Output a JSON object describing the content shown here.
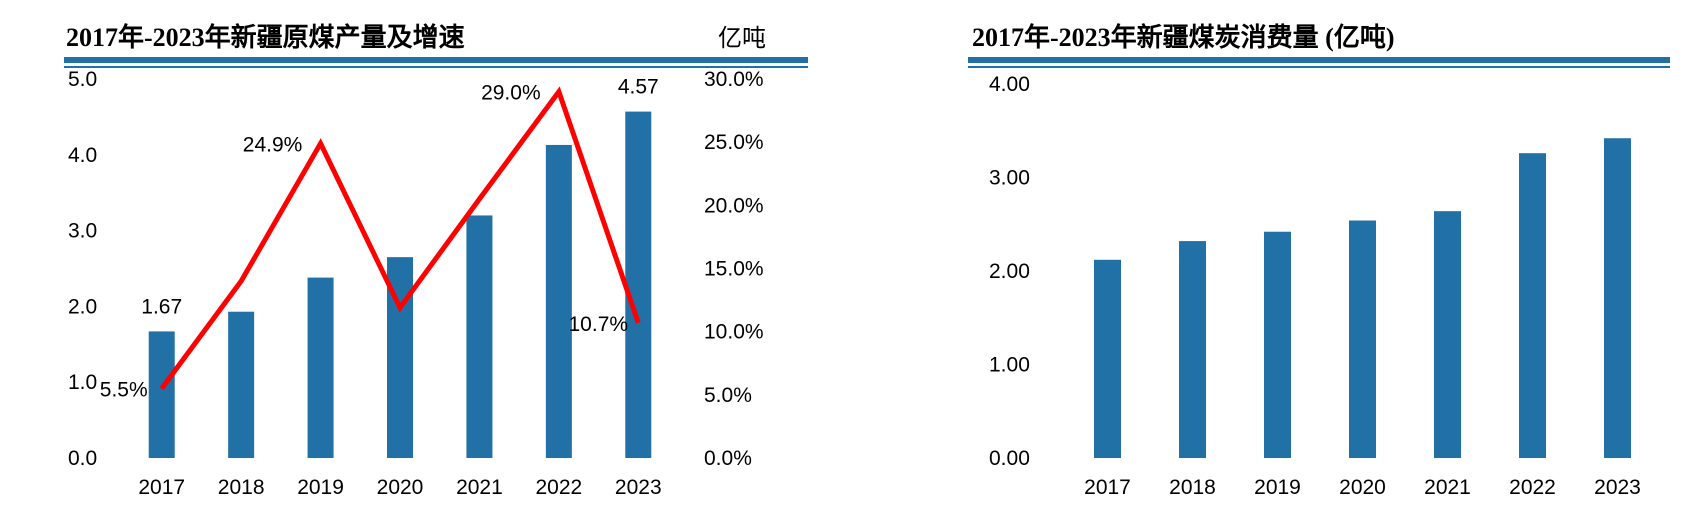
{
  "colors": {
    "bar": "#2271A6",
    "line": "#FF0000",
    "rule": "#2271A6",
    "text": "#000000"
  },
  "chart_data": [
    {
      "type": "bar+line",
      "title": "2017年-2023年新疆原煤产量及增速",
      "unit": "亿吨",
      "categories": [
        "2017",
        "2018",
        "2019",
        "2020",
        "2021",
        "2022",
        "2023"
      ],
      "ylim": [
        0,
        5
      ],
      "yticks": [
        "0.0",
        "1.0",
        "2.0",
        "3.0",
        "4.0",
        "5.0"
      ],
      "y2lim": [
        0,
        30
      ],
      "y2ticks": [
        "0.0%",
        "5.0%",
        "10.0%",
        "15.0%",
        "20.0%",
        "25.0%",
        "30.0%"
      ],
      "grid": false,
      "series": [
        {
          "type": "bar",
          "axis": "left",
          "values": [
            1.67,
            1.93,
            2.38,
            2.65,
            3.2,
            4.13,
            4.57
          ],
          "data_labels": [
            "1.67",
            "",
            "",
            "",
            "",
            "",
            "4.57"
          ]
        },
        {
          "type": "line",
          "axis": "right",
          "values": [
            5.5,
            14.0,
            24.9,
            11.9,
            20.5,
            29.0,
            10.7
          ],
          "data_labels": [
            "5.5%",
            "",
            "24.9%",
            "",
            "",
            "29.0%",
            "10.7%"
          ]
        }
      ]
    },
    {
      "type": "bar",
      "title": "2017年-2023年新疆煤炭消费量 (亿吨)",
      "categories": [
        "2017",
        "2018",
        "2019",
        "2020",
        "2021",
        "2022",
        "2023"
      ],
      "values": [
        2.12,
        2.32,
        2.42,
        2.54,
        2.64,
        3.26,
        3.42
      ],
      "ylim": [
        0,
        4
      ],
      "yticks": [
        "0.00",
        "1.00",
        "2.00",
        "3.00",
        "4.00"
      ],
      "grid": false
    }
  ]
}
